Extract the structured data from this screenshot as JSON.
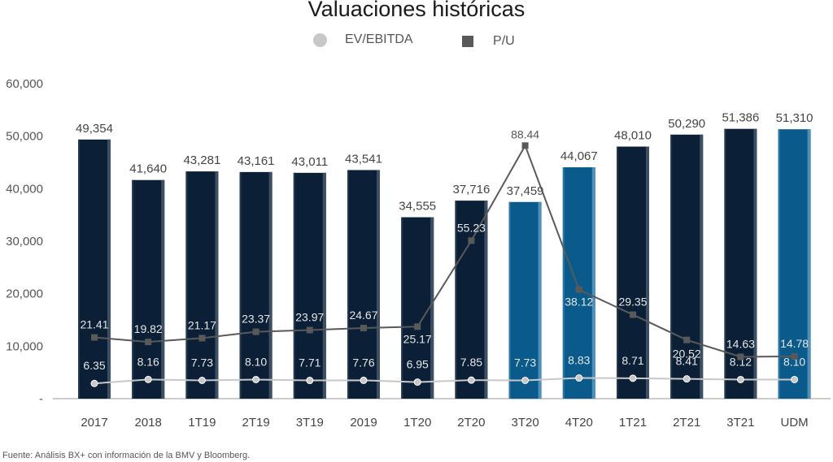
{
  "chart_data": {
    "type": "bar",
    "title": "Valuaciones históricas",
    "categories": [
      "2017",
      "2018",
      "1T19",
      "2T19",
      "3T19",
      "2019",
      "1T20",
      "2T20",
      "3T20",
      "4T20",
      "1T21",
      "2T21",
      "3T21",
      "UDM"
    ],
    "bar_series": {
      "values": [
        49354,
        41640,
        43281,
        43161,
        43011,
        43541,
        34555,
        37716,
        37459,
        44067,
        48010,
        50290,
        51386,
        51310
      ],
      "labels": [
        "49,354",
        "41,640",
        "43,281",
        "43,161",
        "43,011",
        "43,541",
        "34,555",
        "37,716",
        "37,459",
        "44,067",
        "48,010",
        "50,290",
        "51,386",
        "51,310"
      ],
      "highlighted_categories": [
        "3T20",
        "4T20",
        "UDM"
      ],
      "colors": {
        "default": "#0b2036",
        "highlight": "#0a5a8c"
      }
    },
    "series": [
      {
        "name": "EV/EBITDA",
        "type": "line",
        "marker": "circle",
        "color": "#c8c8c8",
        "values": [
          6.35,
          8.16,
          7.73,
          8.1,
          7.71,
          7.76,
          6.95,
          7.85,
          7.73,
          8.83,
          8.71,
          8.41,
          8.12,
          8.1
        ],
        "labels": [
          "6.35",
          "8.16",
          "7.73",
          "8.10",
          "7.71",
          "7.76",
          "6.95",
          "7.85",
          "7.73",
          "8.83",
          "8.71",
          "8.41",
          "8.12",
          "8.10"
        ]
      },
      {
        "name": "P/U",
        "type": "line",
        "marker": "square",
        "color": "#595959",
        "values": [
          21.41,
          19.82,
          21.17,
          23.37,
          23.97,
          24.67,
          25.17,
          55.23,
          88.44,
          38.12,
          29.35,
          20.52,
          14.63,
          14.78
        ],
        "labels": [
          "21.41",
          "19.82",
          "21.17",
          "23.37",
          "23.97",
          "24.67",
          "25.17",
          "55.23",
          "88.44",
          "38.12",
          "29.35",
          "20.52",
          "14.63",
          "14.78"
        ]
      }
    ],
    "y_axis": {
      "ticks": [
        0,
        10000,
        20000,
        30000,
        40000,
        50000,
        60000
      ],
      "tick_labels": [
        "-",
        "10,000",
        "20,000",
        "30,000",
        "40,000",
        "50,000",
        "60,000"
      ],
      "ylim": [
        0,
        60000
      ]
    },
    "grid": false,
    "legend_position": "top-center"
  },
  "legend": {
    "ev_label": "EV/EBITDA",
    "pu_label": "P/U"
  },
  "source_note": "Fuente: Análisis BX+ con información de la BMV y Bloomberg."
}
